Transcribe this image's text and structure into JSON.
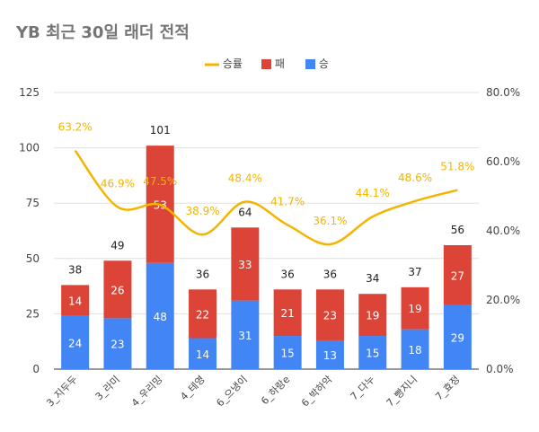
{
  "chart_data": {
    "type": "bar",
    "title": "YB 최근 30일 래더 전적",
    "categories": [
      "3_지두두",
      "3_라미",
      "4_우리밍",
      "4_테영",
      "6_으냉이",
      "6_하랑e",
      "6_박하악",
      "7_다누",
      "7_빵지니",
      "7_효정"
    ],
    "series": [
      {
        "name": "승",
        "values": [
          24,
          23,
          48,
          14,
          31,
          15,
          13,
          15,
          18,
          29
        ],
        "color": "#4285f4"
      },
      {
        "name": "패",
        "values": [
          14,
          26,
          53,
          22,
          33,
          21,
          23,
          19,
          19,
          27
        ],
        "color": "#db4437"
      }
    ],
    "totals": [
      38,
      49,
      101,
      36,
      64,
      36,
      36,
      34,
      37,
      56
    ],
    "line_series": {
      "name": "승률",
      "values": [
        63.2,
        46.9,
        47.5,
        38.9,
        48.4,
        41.7,
        36.1,
        44.1,
        48.6,
        51.8
      ],
      "labels": [
        "63.2%",
        "46.9%",
        "47.5%",
        "38.9%",
        "48.4%",
        "41.7%",
        "36.1%",
        "44.1%",
        "48.6%",
        "51.8%"
      ],
      "color": "#f4b400"
    },
    "y_left": {
      "min": 0,
      "max": 125,
      "ticks": [
        "0",
        "25",
        "50",
        "75",
        "100",
        "125"
      ]
    },
    "y_right": {
      "min": 0,
      "max": 80,
      "ticks": [
        "0.0%",
        "20.0%",
        "40.0%",
        "60.0%",
        "80.0%"
      ]
    },
    "grid": true,
    "legend_position": "top"
  }
}
